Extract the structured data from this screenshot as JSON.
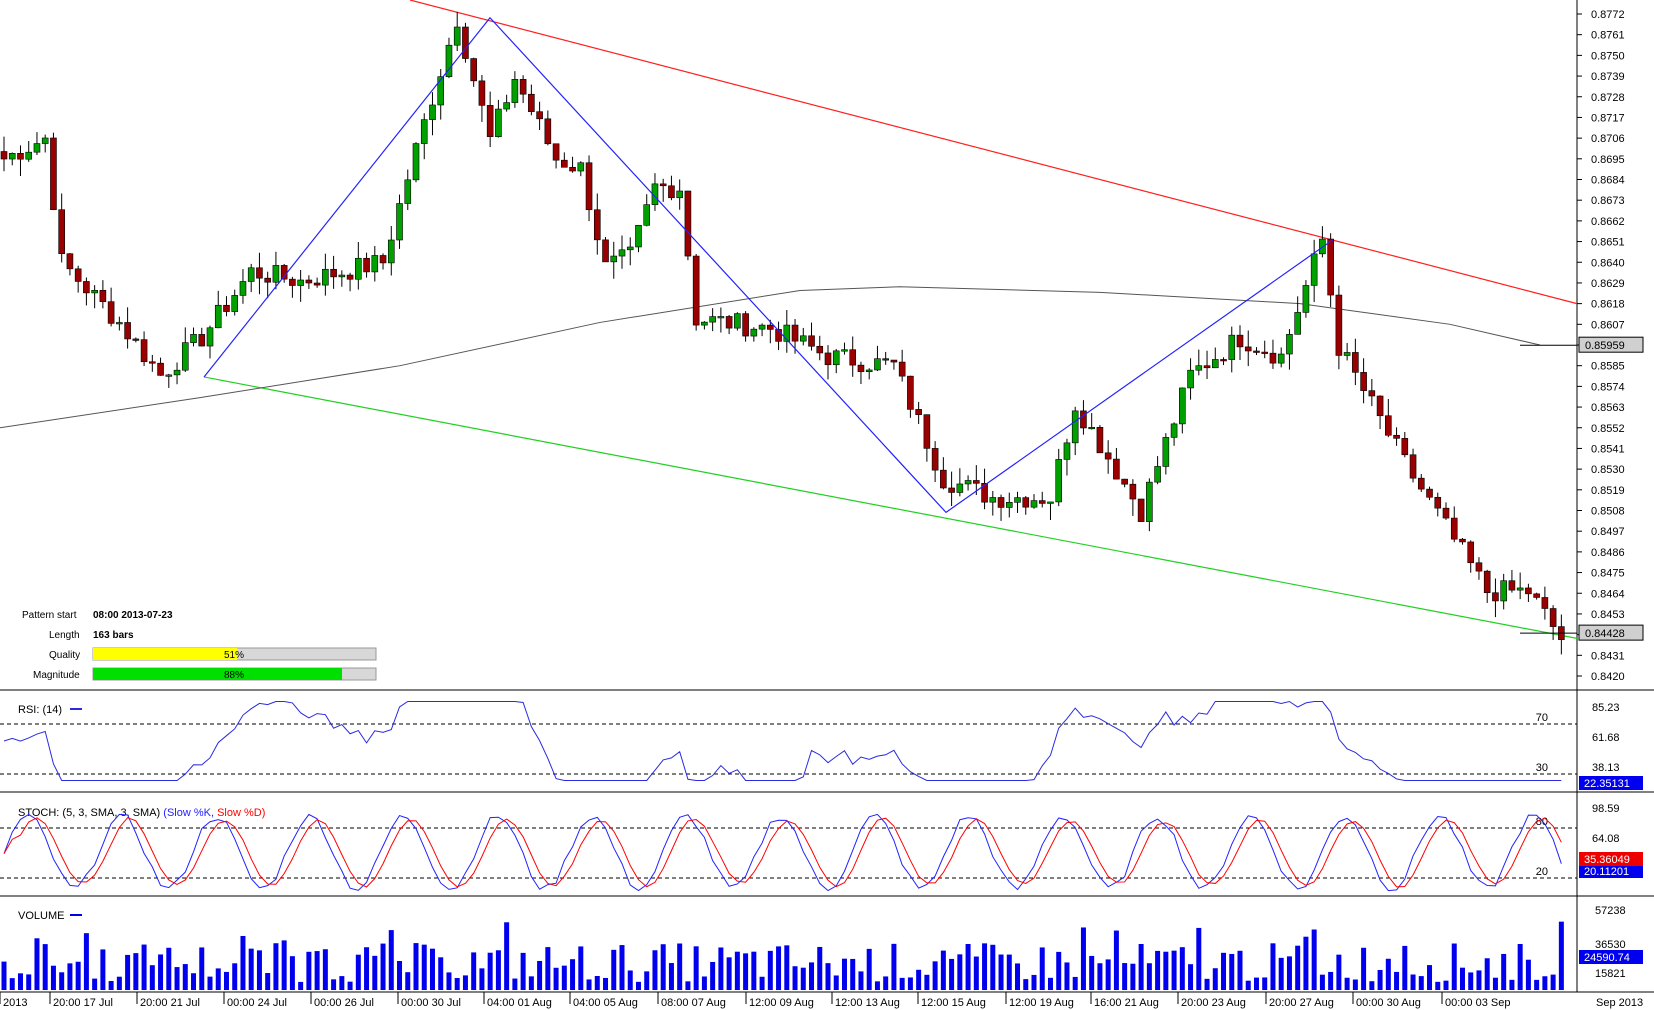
{
  "chart_data": {
    "type": "candlestick",
    "instrument_scale_note": "",
    "price_axis": {
      "ticks": [
        "0.8772",
        "0.8761",
        "0.8750",
        "0.8739",
        "0.8728",
        "0.8717",
        "0.8706",
        "0.8695",
        "0.8684",
        "0.8673",
        "0.8662",
        "0.8651",
        "0.8640",
        "0.8629",
        "0.8618",
        "0.8607",
        "0.8596",
        "0.8585",
        "0.8574",
        "0.8563",
        "0.8552",
        "0.8541",
        "0.8530",
        "0.8519",
        "0.8508",
        "0.8497",
        "0.8486",
        "0.8475",
        "0.8464",
        "0.8453",
        "0.8442",
        "0.8431",
        "0.8420"
      ],
      "range": [
        0.8414,
        0.8779
      ]
    },
    "price_badges": [
      {
        "value": 0.85959,
        "label": "0.85959"
      },
      {
        "value": 0.84428,
        "label": "0.84428"
      }
    ],
    "time_axis": [
      "2013",
      "20:00 17 Jul",
      "20:00 21 Jul",
      "00:00 24 Jul",
      "00:00 26 Jul",
      "00:00 30 Jul",
      "04:00 01 Aug",
      "04:00 05 Aug",
      "08:00 07 Aug",
      "12:00 09 Aug",
      "12:00 13 Aug",
      "12:00 15 Aug",
      "12:00 19 Aug",
      "16:00 21 Aug",
      "20:00 23 Aug",
      "20:00 27 Aug",
      "00:00 30 Aug",
      "00:00 03 Sep"
    ],
    "time_axis_right": "Sep 2013",
    "zigzag": [
      [
        0.8579,
        0.8581
      ],
      [
        0.877,
        0.877
      ],
      [
        0.8507,
        0.8507
      ],
      [
        0.8652,
        0.8652
      ]
    ],
    "channel_upper_label": "",
    "pattern_info": {
      "pattern_start_label": "Pattern start",
      "pattern_start_value": "08:00 2013-07-23",
      "length_label": "Length",
      "length_value": "163 bars",
      "quality_label": "Quality",
      "quality_value": 51,
      "quality_text": "51%",
      "magnitude_label": "Magnitude",
      "magnitude_value": 88,
      "magnitude_text": "88%"
    },
    "rsi": {
      "title": "RSI: (14)",
      "ticks": [
        "85.23",
        "61.68",
        "38.13"
      ],
      "levels": [
        "70",
        "30"
      ],
      "current": "22.35131"
    },
    "stoch": {
      "title_prefix": "STOCH: (5, 3, SMA, 3, SMA)",
      "k_label": "(Slow %K,",
      "d_label": "Slow %D)",
      "ticks": [
        "98.59",
        "64.08"
      ],
      "levels": [
        "80",
        "20"
      ],
      "current_d": "35.36049",
      "current_k": "20.11201"
    },
    "volume": {
      "title": "VOLUME",
      "ticks": [
        "57238",
        "36530",
        "15821"
      ],
      "current": "24590.74",
      "range": [
        0,
        64000
      ]
    }
  },
  "colors": {
    "bull": "#00a000",
    "bear": "#9a0000",
    "zigzag": "#2222ff",
    "channel_upper": "#ff2020",
    "channel_lower": "#20d020",
    "ma": "#555555",
    "rsi": "#2a2ae0",
    "stoch_k": "#2222ff",
    "stoch_d": "#ff0000",
    "volume": "#0000ee",
    "quality_bar": "#ffff00",
    "magnitude_bar": "#00e000"
  }
}
